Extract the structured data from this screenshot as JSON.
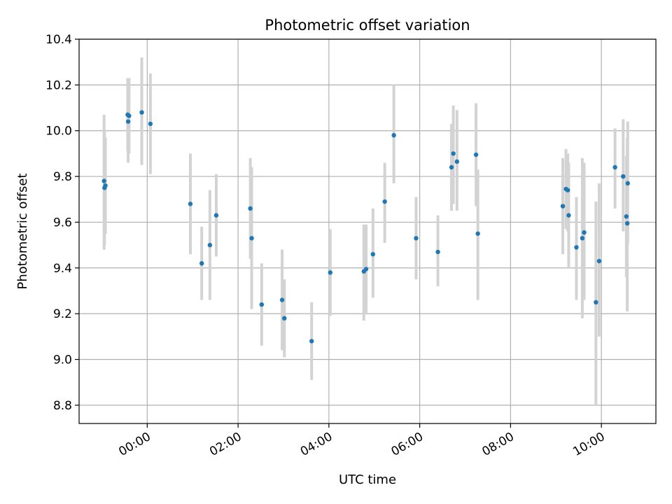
{
  "chart_data": {
    "type": "scatter",
    "title": "Photometric offset variation",
    "xlabel": "UTC time",
    "ylabel": "Photometric offset",
    "x_unit": "hours",
    "xlim": [
      -1.5,
      11.2
    ],
    "ylim": [
      8.72,
      10.4
    ],
    "x_ticks": [
      {
        "value": 0,
        "label": "00:00"
      },
      {
        "value": 2,
        "label": "02:00"
      },
      {
        "value": 4,
        "label": "04:00"
      },
      {
        "value": 6,
        "label": "06:00"
      },
      {
        "value": 8,
        "label": "08:00"
      },
      {
        "value": 10,
        "label": "10:00"
      }
    ],
    "y_ticks": [
      {
        "value": 8.8,
        "label": "8.8"
      },
      {
        "value": 9.0,
        "label": "9.0"
      },
      {
        "value": 9.2,
        "label": "9.2"
      },
      {
        "value": 9.4,
        "label": "9.4"
      },
      {
        "value": 9.6,
        "label": "9.6"
      },
      {
        "value": 9.8,
        "label": "9.8"
      },
      {
        "value": 10.0,
        "label": "10.0"
      },
      {
        "value": 10.2,
        "label": "10.2"
      },
      {
        "value": 10.4,
        "label": "10.4"
      }
    ],
    "grid": true,
    "colors": {
      "point": "#1f77b4",
      "errorbar": "#d3d3d3",
      "grid": "#b0b0b0"
    },
    "points": [
      {
        "x": -0.95,
        "y": 9.78,
        "ylo": 9.48,
        "yhi": 10.07
      },
      {
        "x": -0.94,
        "y": 9.75,
        "ylo": 9.5,
        "yhi": 10.0
      },
      {
        "x": -0.92,
        "y": 9.76,
        "ylo": 9.55,
        "yhi": 9.97
      },
      {
        "x": -0.43,
        "y": 10.07,
        "ylo": 9.91,
        "yhi": 10.23
      },
      {
        "x": -0.42,
        "y": 10.04,
        "ylo": 9.86,
        "yhi": 10.21
      },
      {
        "x": -0.4,
        "y": 10.065,
        "ylo": 9.9,
        "yhi": 10.23
      },
      {
        "x": -0.12,
        "y": 10.08,
        "ylo": 9.85,
        "yhi": 10.32
      },
      {
        "x": 0.07,
        "y": 10.03,
        "ylo": 9.81,
        "yhi": 10.25
      },
      {
        "x": 0.95,
        "y": 9.68,
        "ylo": 9.46,
        "yhi": 9.9
      },
      {
        "x": 1.2,
        "y": 9.42,
        "ylo": 9.26,
        "yhi": 9.58
      },
      {
        "x": 1.38,
        "y": 9.5,
        "ylo": 9.26,
        "yhi": 9.74
      },
      {
        "x": 1.52,
        "y": 9.63,
        "ylo": 9.45,
        "yhi": 9.81
      },
      {
        "x": 2.27,
        "y": 9.66,
        "ylo": 9.44,
        "yhi": 9.88
      },
      {
        "x": 2.3,
        "y": 9.53,
        "ylo": 9.22,
        "yhi": 9.84
      },
      {
        "x": 2.52,
        "y": 9.24,
        "ylo": 9.06,
        "yhi": 9.42
      },
      {
        "x": 2.97,
        "y": 9.26,
        "ylo": 9.04,
        "yhi": 9.48
      },
      {
        "x": 3.02,
        "y": 9.18,
        "ylo": 9.01,
        "yhi": 9.35
      },
      {
        "x": 3.62,
        "y": 9.08,
        "ylo": 8.91,
        "yhi": 9.25
      },
      {
        "x": 4.03,
        "y": 9.38,
        "ylo": 9.19,
        "yhi": 9.57
      },
      {
        "x": 4.77,
        "y": 9.385,
        "ylo": 9.17,
        "yhi": 9.59
      },
      {
        "x": 4.82,
        "y": 9.395,
        "ylo": 9.2,
        "yhi": 9.59
      },
      {
        "x": 4.97,
        "y": 9.46,
        "ylo": 9.27,
        "yhi": 9.66
      },
      {
        "x": 5.23,
        "y": 9.69,
        "ylo": 9.51,
        "yhi": 9.86
      },
      {
        "x": 5.43,
        "y": 9.98,
        "ylo": 9.77,
        "yhi": 10.2
      },
      {
        "x": 5.92,
        "y": 9.53,
        "ylo": 9.35,
        "yhi": 9.71
      },
      {
        "x": 6.4,
        "y": 9.47,
        "ylo": 9.32,
        "yhi": 9.63
      },
      {
        "x": 6.7,
        "y": 9.84,
        "ylo": 9.65,
        "yhi": 10.03
      },
      {
        "x": 6.74,
        "y": 9.9,
        "ylo": 9.68,
        "yhi": 10.11
      },
      {
        "x": 6.82,
        "y": 9.865,
        "ylo": 9.65,
        "yhi": 10.09
      },
      {
        "x": 7.24,
        "y": 9.895,
        "ylo": 9.67,
        "yhi": 10.12
      },
      {
        "x": 7.28,
        "y": 9.55,
        "ylo": 9.26,
        "yhi": 9.83
      },
      {
        "x": 9.15,
        "y": 9.67,
        "ylo": 9.46,
        "yhi": 9.88
      },
      {
        "x": 9.22,
        "y": 9.745,
        "ylo": 9.57,
        "yhi": 9.92
      },
      {
        "x": 9.26,
        "y": 9.74,
        "ylo": 9.56,
        "yhi": 9.9
      },
      {
        "x": 9.28,
        "y": 9.63,
        "ylo": 9.4,
        "yhi": 9.86
      },
      {
        "x": 9.45,
        "y": 9.49,
        "ylo": 9.26,
        "yhi": 9.71
      },
      {
        "x": 9.58,
        "y": 9.53,
        "ylo": 9.18,
        "yhi": 9.88
      },
      {
        "x": 9.62,
        "y": 9.555,
        "ylo": 9.26,
        "yhi": 9.86
      },
      {
        "x": 9.88,
        "y": 9.25,
        "ylo": 8.8,
        "yhi": 9.69
      },
      {
        "x": 9.95,
        "y": 9.43,
        "ylo": 9.1,
        "yhi": 9.77
      },
      {
        "x": 10.3,
        "y": 9.84,
        "ylo": 9.66,
        "yhi": 10.01
      },
      {
        "x": 10.48,
        "y": 9.8,
        "ylo": 9.56,
        "yhi": 10.05
      },
      {
        "x": 10.55,
        "y": 9.625,
        "ylo": 9.36,
        "yhi": 9.89
      },
      {
        "x": 10.57,
        "y": 9.595,
        "ylo": 9.21,
        "yhi": 9.97
      },
      {
        "x": 10.58,
        "y": 9.77,
        "ylo": 9.51,
        "yhi": 10.04
      }
    ]
  }
}
